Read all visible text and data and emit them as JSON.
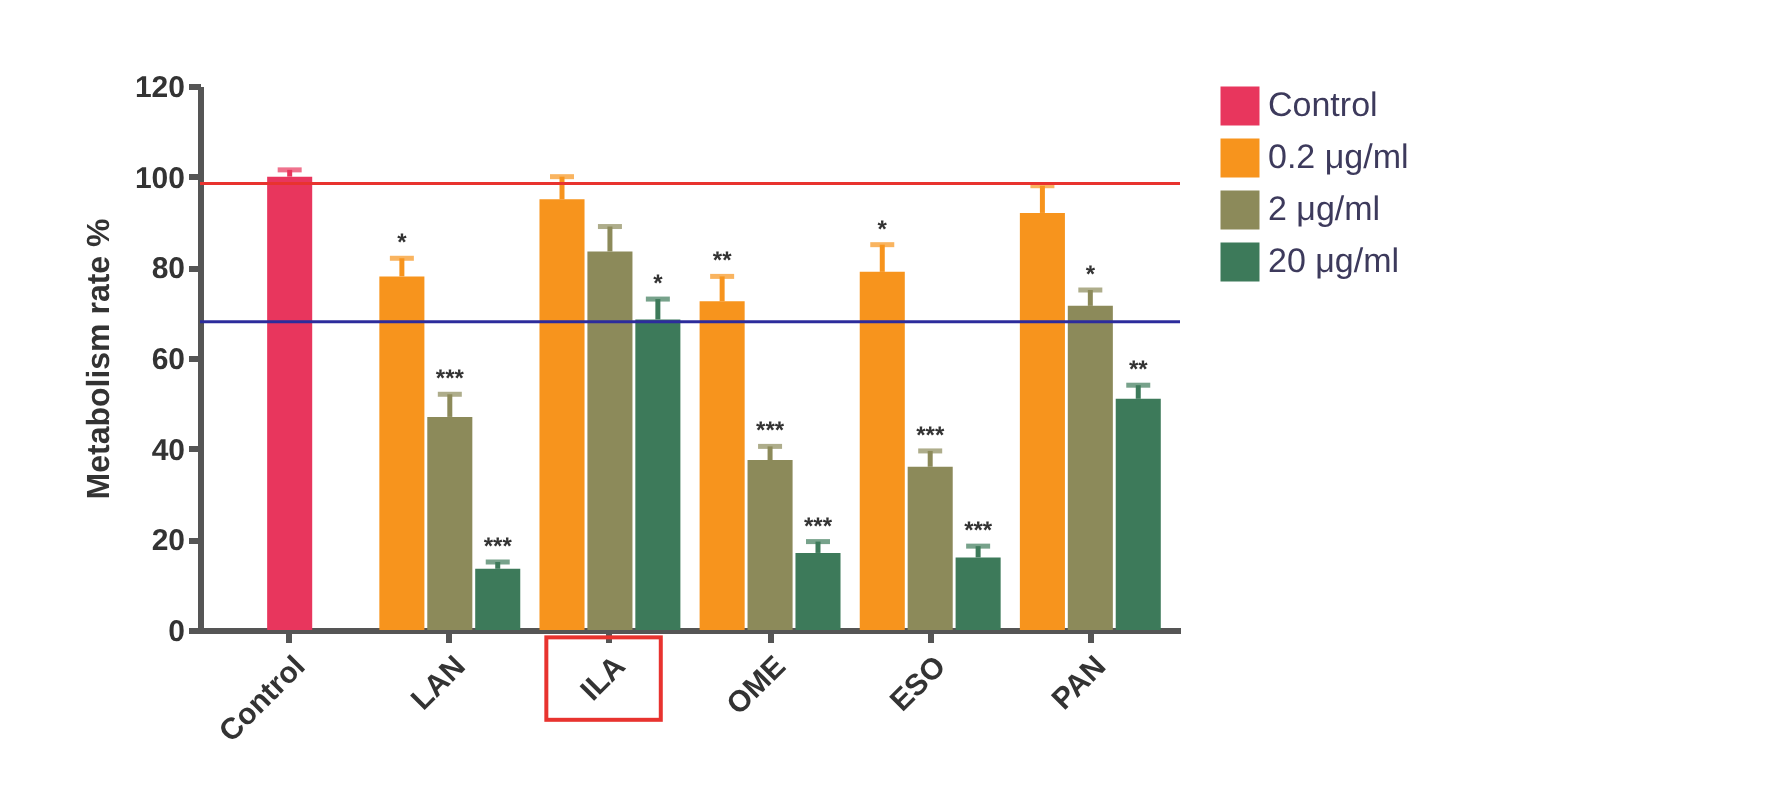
{
  "chart_data": {
    "type": "bar",
    "ylabel": "Metabolism rate %",
    "categories": [
      "Control",
      "LAN",
      "ILA",
      "OME",
      "ESO",
      "PAN"
    ],
    "series": [
      {
        "name": "Control",
        "color": "#e8365d",
        "values": [
          100,
          null,
          null,
          null,
          null,
          null
        ],
        "errors": [
          [
            100,
            101.5
          ],
          null,
          null,
          null,
          null,
          null
        ]
      },
      {
        "name": "0.2 μg/ml",
        "color": "#f7941d",
        "values": [
          null,
          78,
          95,
          72.5,
          79,
          92
        ],
        "errors": [
          null,
          [
            78,
            82
          ],
          [
            95,
            100
          ],
          [
            72.5,
            78
          ],
          [
            79,
            85
          ],
          [
            92,
            98
          ]
        ],
        "value_labels": [
          null,
          "*",
          null,
          "**",
          "*",
          null
        ]
      },
      {
        "name": "2 μg/ml",
        "color": "#8c8a5a",
        "values": [
          null,
          47,
          83.5,
          37.5,
          36,
          71.5
        ],
        "errors": [
          null,
          [
            47,
            52
          ],
          [
            83.5,
            89
          ],
          [
            37.5,
            40.5
          ],
          [
            36,
            39.5
          ],
          [
            71.5,
            75
          ]
        ],
        "value_labels": [
          null,
          "***",
          null,
          "***",
          "***",
          "*"
        ]
      },
      {
        "name": "20 μg/ml",
        "color": "#3d7a5a",
        "values": [
          null,
          13.5,
          68.5,
          17,
          16,
          51
        ],
        "errors": [
          null,
          [
            13.5,
            15
          ],
          [
            68.5,
            73
          ],
          [
            17,
            19.5
          ],
          [
            16,
            18.5
          ],
          [
            51,
            54
          ]
        ],
        "value_labels": [
          null,
          "***",
          "*",
          "***",
          "***",
          "**"
        ]
      }
    ],
    "ylim": [
      0,
      120
    ],
    "yticks": [
      0,
      20,
      40,
      60,
      80,
      100,
      120
    ],
    "ref_lines": [
      {
        "axis": "y",
        "value": 98.5,
        "color": "#e8332f"
      },
      {
        "axis": "y",
        "value": 68,
        "color": "#2c2c9c"
      }
    ],
    "legend": "right"
  }
}
